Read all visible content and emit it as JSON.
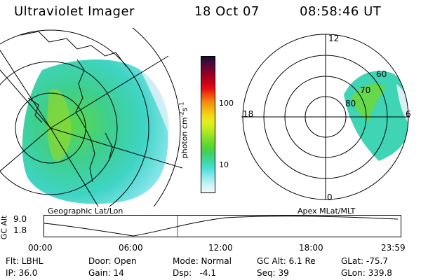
{
  "header": {
    "instrument": "Ultraviolet Imager",
    "date": "18 Oct 07",
    "time": "08:58:46 UT"
  },
  "colorbar": {
    "ticks": [
      "100",
      "10"
    ],
    "unit_label": "photon cm",
    "unit_exp1": "-2",
    "unit_s": "s",
    "unit_exp2": "-1",
    "colors": [
      "#101030",
      "#4a0a3a",
      "#7a0030",
      "#a00020",
      "#c80018",
      "#e41010",
      "#f05010",
      "#f28c10",
      "#f4b010",
      "#f4d418",
      "#e6ec1c",
      "#c6ec1c",
      "#9ee424",
      "#78dc2c",
      "#54d43a",
      "#3ed064",
      "#3ed49c",
      "#46dccc",
      "#6ee4e8",
      "#a6ecf0",
      "#d4f4f6",
      "#f0f8fa"
    ]
  },
  "left_panel": {
    "title": "Geographic Lat/Lon"
  },
  "right_panel": {
    "title": "Apex MLat/MLT",
    "mlt_labels": {
      "top": "12",
      "left": "18",
      "right": "6",
      "bottom": "0"
    },
    "lat_labels": [
      "60",
      "70",
      "80"
    ]
  },
  "orbit": {
    "axis_label": "GC Alt",
    "y_ticks": [
      "9.0",
      "1.8"
    ],
    "x_ticks": [
      "00:00",
      "06:00",
      "12:00",
      "18:00",
      "23:59"
    ],
    "current_time_fraction": 0.374,
    "marker_color": "#cc2222"
  },
  "status": {
    "filter": "Flt: LBHL",
    "ip": "IP: 36.0",
    "door": "Door: Open",
    "gain": "Gain: 14",
    "mode": "Mode: Normal",
    "dsp": "Dsp:   -4.1",
    "gc_alt": "GC Alt: 6.1 Re",
    "seq": "Seq: 39",
    "glat": "GLat: -75.7",
    "glon": "GLon: 339.8"
  }
}
